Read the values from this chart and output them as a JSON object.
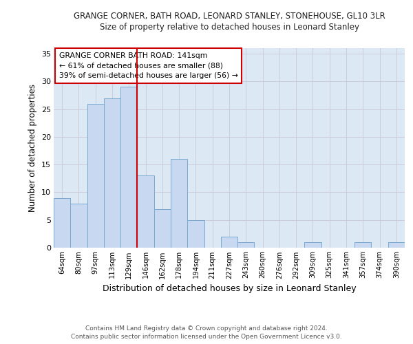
{
  "title": "GRANGE CORNER, BATH ROAD, LEONARD STANLEY, STONEHOUSE, GL10 3LR",
  "subtitle": "Size of property relative to detached houses in Leonard Stanley",
  "xlabel": "Distribution of detached houses by size in Leonard Stanley",
  "ylabel": "Number of detached properties",
  "categories": [
    "64sqm",
    "80sqm",
    "97sqm",
    "113sqm",
    "129sqm",
    "146sqm",
    "162sqm",
    "178sqm",
    "194sqm",
    "211sqm",
    "227sqm",
    "243sqm",
    "260sqm",
    "276sqm",
    "292sqm",
    "309sqm",
    "325sqm",
    "341sqm",
    "357sqm",
    "374sqm",
    "390sqm"
  ],
  "values": [
    9,
    8,
    26,
    27,
    29,
    13,
    7,
    16,
    5,
    0,
    2,
    1,
    0,
    0,
    0,
    1,
    0,
    0,
    1,
    0,
    1
  ],
  "bar_color": "#c8d8f0",
  "bar_edge_color": "#7aaad0",
  "grid_color": "#c8c8d8",
  "background_color": "#dde8f5",
  "fig_background": "#ffffff",
  "vline_x_index": 5,
  "vline_color": "#cc0000",
  "annotation_text": "GRANGE CORNER BATH ROAD: 141sqm\n← 61% of detached houses are smaller (88)\n39% of semi-detached houses are larger (56) →",
  "ylim": [
    0,
    36
  ],
  "yticks": [
    0,
    5,
    10,
    15,
    20,
    25,
    30,
    35
  ],
  "footer1": "Contains HM Land Registry data © Crown copyright and database right 2024.",
  "footer2": "Contains public sector information licensed under the Open Government Licence v3.0."
}
